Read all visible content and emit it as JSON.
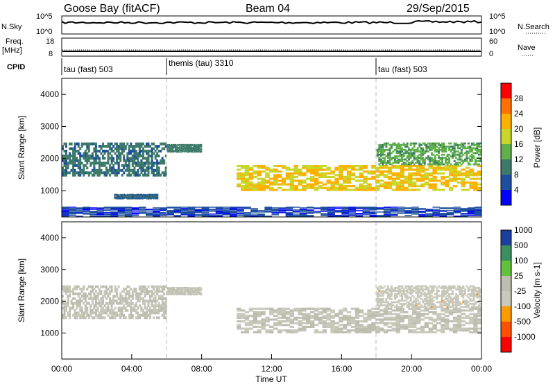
{
  "header": {
    "station": "Goose Bay (fitACF)",
    "beam": "Beam 04",
    "date": "29/Sep/2015"
  },
  "top_panels": {
    "nsky_label": "N.Sky",
    "nsky_ticks": [
      "10^5",
      "10^0"
    ],
    "nsearch_label": "N.Search",
    "nsearch_ticks": [
      "10^5",
      "10^0"
    ],
    "freq_label": "Freq.",
    "freq_unit": "[MHz]",
    "freq_ticks": [
      "18",
      "8"
    ],
    "nave_label": "Nave",
    "nave_ticks": [
      "60",
      "0"
    ],
    "cpid_label": "CPID",
    "cpid_segments": [
      {
        "label": "tau (fast) 503",
        "start_hour": 0
      },
      {
        "label": "themis (tau) 3310",
        "start_hour": 6
      },
      {
        "label": "tau (fast) 503",
        "start_hour": 18
      }
    ]
  },
  "colors": {
    "power_scale": [
      "#0000ff",
      "#1e4ea0",
      "#3d7a6a",
      "#5fb04a",
      "#c8d72a",
      "#ffb000",
      "#ff7000",
      "#ff0000"
    ],
    "velocity_scale": [
      "#ff0000",
      "#ff5000",
      "#ff9900",
      "#c8c8bb",
      "#bdbdb0",
      "#62c23d",
      "#3a8f5e",
      "#1a3f9e"
    ]
  },
  "chart_data": [
    {
      "type": "heatmap",
      "name": "power",
      "ylabel": "Slant Range [km]",
      "yticks": [
        1000,
        2000,
        3000,
        4000
      ],
      "ylim": [
        180,
        4500
      ],
      "xlim": [
        0,
        24
      ],
      "colorbar_label": "Power [dB]",
      "colorbar_ticks": [
        "4",
        "8",
        "12",
        "16",
        "20",
        "24",
        "28"
      ],
      "colorbar_range": [
        0,
        32
      ],
      "echo_bands": [
        {
          "t0": 0.0,
          "t1": 6.0,
          "r0": 1450,
          "r1": 2500,
          "value": 9
        },
        {
          "t0": 6.0,
          "t1": 8.0,
          "r0": 2200,
          "r1": 2450,
          "value": 10
        },
        {
          "t0": 3.0,
          "t1": 5.5,
          "r0": 750,
          "r1": 900,
          "value": 8
        },
        {
          "t0": 10.0,
          "t1": 24.0,
          "r0": 1000,
          "r1": 1800,
          "value": 20
        },
        {
          "t0": 18.0,
          "t1": 24.0,
          "r0": 1800,
          "r1": 2500,
          "value": 13
        },
        {
          "t0": 0.0,
          "t1": 24.0,
          "r0": 200,
          "r1": 500,
          "value": 5
        }
      ]
    },
    {
      "type": "heatmap",
      "name": "velocity",
      "ylabel": "Slant Range [km]",
      "xlabel": "Time UT",
      "yticks": [
        1000,
        2000,
        3000,
        4000
      ],
      "ylim": [
        180,
        4500
      ],
      "xlim": [
        0,
        24
      ],
      "xtick_labels": [
        "00:00",
        "04:00",
        "08:00",
        "12:00",
        "16:00",
        "20:00",
        "00:00"
      ],
      "colorbar_label": "Velocity [m s-1]",
      "colorbar_ticks": [
        "-1000",
        "-500",
        "-100",
        "-25",
        "25",
        "100",
        "500",
        "1000"
      ],
      "colorbar_range": [
        -1500,
        1500
      ],
      "echo_bands": [
        {
          "t0": 0.0,
          "t1": 6.0,
          "r0": 1450,
          "r1": 2500,
          "value": 0
        },
        {
          "t0": 6.0,
          "t1": 8.0,
          "r0": 2200,
          "r1": 2450,
          "value": 0
        },
        {
          "t0": 10.0,
          "t1": 24.0,
          "r0": 1000,
          "r1": 1800,
          "value": 0
        },
        {
          "t0": 18.0,
          "t1": 24.0,
          "r0": 1800,
          "r1": 2500,
          "value": -200
        }
      ]
    }
  ]
}
